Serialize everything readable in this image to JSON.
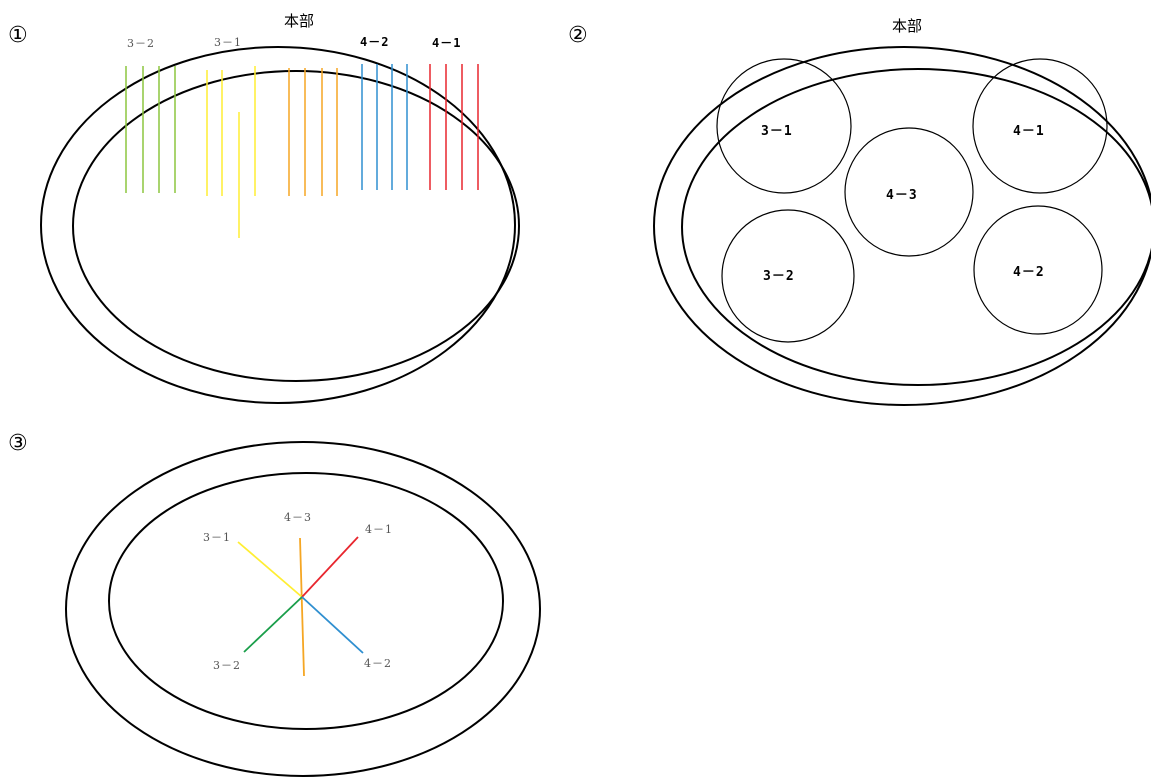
{
  "colors": {
    "green": "#8cc63f",
    "yellow": "#ffee33",
    "orange": "#f5a623",
    "blue": "#2f8fd0",
    "red": "#e8262e",
    "dark_green": "#1a9e4a"
  },
  "panel1": {
    "marker": "①",
    "title": "本部",
    "labels": {
      "l32": "3－2",
      "l31": "3－1",
      "l42": "4－2",
      "l41": "4－1"
    }
  },
  "panel2": {
    "marker": "②",
    "title": "本部",
    "zones": {
      "z31": "3－1",
      "z41": "4－1",
      "z43": "4－3",
      "z32": "3－2",
      "z42": "4－2"
    }
  },
  "panel3": {
    "marker": "③",
    "labels": {
      "l43": "4－3",
      "l31": "3－1",
      "l41": "4－1",
      "l32": "3－2",
      "l42": "4－2"
    }
  }
}
